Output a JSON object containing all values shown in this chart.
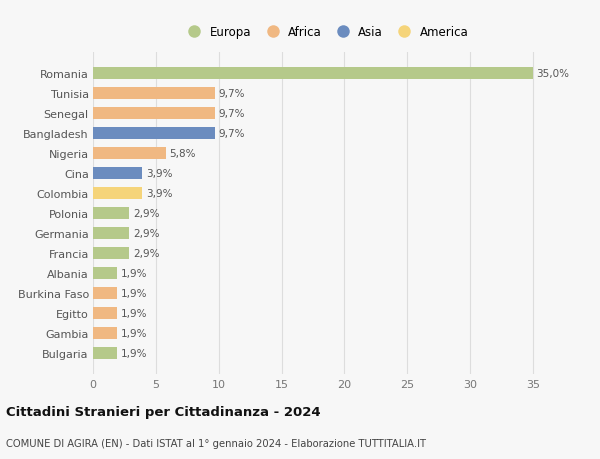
{
  "categories": [
    "Romania",
    "Tunisia",
    "Senegal",
    "Bangladesh",
    "Nigeria",
    "Cina",
    "Colombia",
    "Polonia",
    "Germania",
    "Francia",
    "Albania",
    "Burkina Faso",
    "Egitto",
    "Gambia",
    "Bulgaria"
  ],
  "values": [
    35.0,
    9.7,
    9.7,
    9.7,
    5.8,
    3.9,
    3.9,
    2.9,
    2.9,
    2.9,
    1.9,
    1.9,
    1.9,
    1.9,
    1.9
  ],
  "labels": [
    "35,0%",
    "9,7%",
    "9,7%",
    "9,7%",
    "5,8%",
    "3,9%",
    "3,9%",
    "2,9%",
    "2,9%",
    "2,9%",
    "1,9%",
    "1,9%",
    "1,9%",
    "1,9%",
    "1,9%"
  ],
  "show_label": [
    true,
    true,
    true,
    true,
    true,
    true,
    true,
    true,
    true,
    true,
    true,
    true,
    true,
    true,
    true
  ],
  "colors": [
    "#b5c98a",
    "#f0b882",
    "#f0b882",
    "#6b8cbf",
    "#f0b882",
    "#6b8cbf",
    "#f5d47a",
    "#b5c98a",
    "#b5c98a",
    "#b5c98a",
    "#b5c98a",
    "#f0b882",
    "#f0b882",
    "#f0b882",
    "#b5c98a"
  ],
  "legend": [
    {
      "label": "Europa",
      "color": "#b5c98a"
    },
    {
      "label": "Africa",
      "color": "#f0b882"
    },
    {
      "label": "Asia",
      "color": "#6b8cbf"
    },
    {
      "label": "America",
      "color": "#f5d47a"
    }
  ],
  "xlim": [
    0,
    37
  ],
  "xticks": [
    0,
    5,
    10,
    15,
    20,
    25,
    30,
    35
  ],
  "title": "Cittadini Stranieri per Cittadinanza - 2024",
  "subtitle": "COMUNE DI AGIRA (EN) - Dati ISTAT al 1° gennaio 2024 - Elaborazione TUTTITALIA.IT",
  "background_color": "#f7f7f7",
  "grid_color": "#dddddd",
  "bar_height": 0.62
}
